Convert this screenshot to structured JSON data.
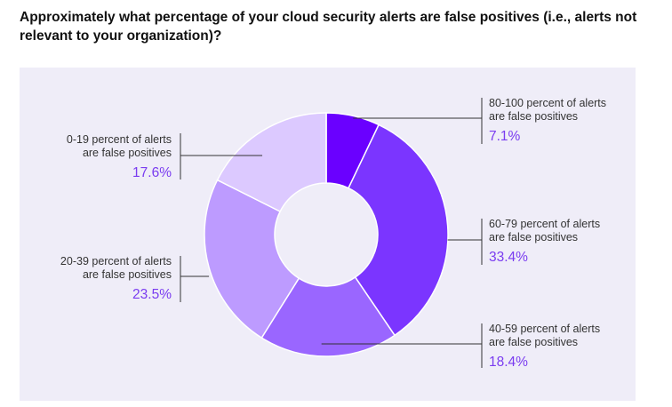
{
  "title": "Approximately what percentage of your cloud security alerts are false positives (i.e., alerts not relevant to your organization)?",
  "chart_data": {
    "type": "pie",
    "donut": true,
    "slices": [
      {
        "label": [
          "80-100 percent of alerts",
          "are false positives"
        ],
        "value": 7.1,
        "display": "7.1%",
        "color": "#6a00ff"
      },
      {
        "label": [
          "60-79 percent of alerts",
          "are false positives"
        ],
        "value": 33.4,
        "display": "33.4%",
        "color": "#7b35ff"
      },
      {
        "label": [
          "40-59 percent of alerts",
          "are false positives"
        ],
        "value": 18.4,
        "display": "18.4%",
        "color": "#9a66ff"
      },
      {
        "label": [
          "20-39 percent of alerts",
          "are false positives"
        ],
        "value": 23.5,
        "display": "23.5%",
        "color": "#bd9bff"
      },
      {
        "label": [
          "0-19 percent of alerts",
          "are false positives"
        ],
        "value": 17.6,
        "display": "17.6%",
        "color": "#dcc9ff"
      }
    ]
  }
}
